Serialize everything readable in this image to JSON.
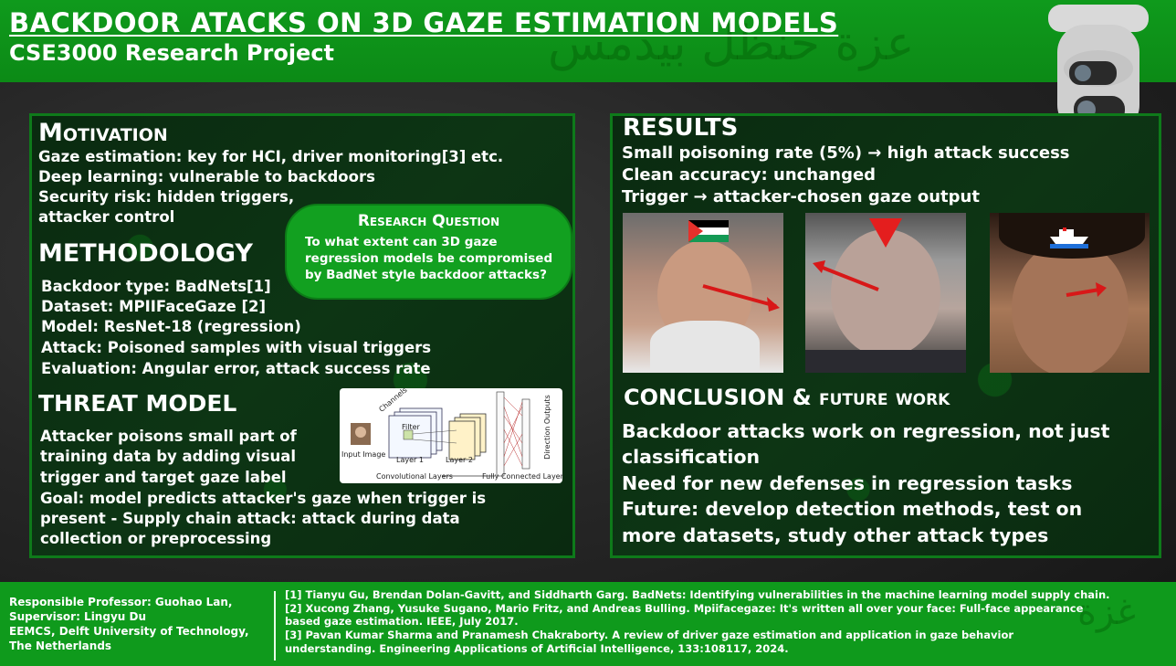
{
  "header": {
    "title": "BACKDOOR ATACKS ON 3D GAZE ESTIMATION MODELS",
    "subtitle": "CSE3000 Research Project",
    "icon": "security-camera-icon"
  },
  "motivation": {
    "heading": "Motivation",
    "lines": [
      "Gaze estimation: key for HCI, driver monitoring[3] etc.",
      "Deep learning: vulnerable to backdoors",
      "Security risk: hidden triggers,",
      "attacker control"
    ]
  },
  "research_question": {
    "heading": "Research Question",
    "text": "To what extent can 3D gaze regression models be compromised by BadNet style backdoor attacks?"
  },
  "methodology": {
    "heading": "METHODOLOGY",
    "lines": [
      "Backdoor type: BadNets[1]",
      "Dataset: MPIIFaceGaze [2]",
      "Model: ResNet-18 (regression)",
      "Attack: Poisoned samples with visual triggers",
      "Evaluation: Angular error, attack success rate"
    ]
  },
  "threat_model": {
    "heading": "THREAT MODEL",
    "lines": [
      "Attacker poisons small part of",
      "training data by adding visual",
      "trigger and target gaze label",
      "Goal: model predicts attacker's gaze when trigger is",
      "present - Supply chain attack: attack during data",
      "collection or preprocessing"
    ]
  },
  "cnn_diagram": {
    "input": "Input Image",
    "channels": "Channels",
    "filter": "Filter",
    "layer1": "Layer 1",
    "layer2": "Layer 2",
    "conv": "Convolutional Layers",
    "fc": "Fully Connected Layer",
    "outputs": "Direction Outputs"
  },
  "results": {
    "heading": "RESULTS",
    "lines": [
      "Small poisoning rate (5%) → high attack success",
      "Clean accuracy: unchanged",
      "Trigger → attacker-chosen gaze output"
    ],
    "photos": [
      {
        "trigger": "flag-icon",
        "trigger_colors": [
          "#000000",
          "#ffffff",
          "#149954",
          "#e4312b"
        ]
      },
      {
        "trigger": "red-triangle-icon",
        "trigger_colors": [
          "#e41e1e"
        ]
      },
      {
        "trigger": "ship-icon",
        "trigger_colors": [
          "#ffffff",
          "#1e6fd9"
        ]
      }
    ],
    "arrow_color": "#d81818"
  },
  "conclusion": {
    "heading": "CONCLUSION & future work",
    "lines": [
      "Backdoor attacks work on regression, not just",
      "classification",
      "Need for new defenses in regression tasks",
      "Future: develop detection methods, test on",
      "more datasets, study other attack types"
    ]
  },
  "footer": {
    "people": [
      "Responsible Professor: Guohao Lan,",
      "Supervisor: Lingyu Du",
      "EEMCS, Delft University of Technology,",
      "The Netherlands"
    ],
    "refs": [
      "[1] Tianyu Gu, Brendan Dolan-Gavitt, and Siddharth Garg. BadNets: Identifying vulnerabilities in the machine learning model supply chain.",
      "[2] Xucong Zhang, Yusuke Sugano, Mario Fritz, and Andreas Bulling. Mpiifacegaze: It's written all over your face: Full-face appearance",
      "based gaze estimation. IEEE, July 2017.",
      "[3] Pavan Kumar Sharma and Pranamesh Chakraborty. A review of driver gaze estimation and application in gaze behavior",
      "understanding. Engineering Applications of Artificial Intelligence, 133:108117, 2024."
    ]
  },
  "colors": {
    "brand_green": "#0f9a1c",
    "panel_dark": "#0a2a10"
  }
}
